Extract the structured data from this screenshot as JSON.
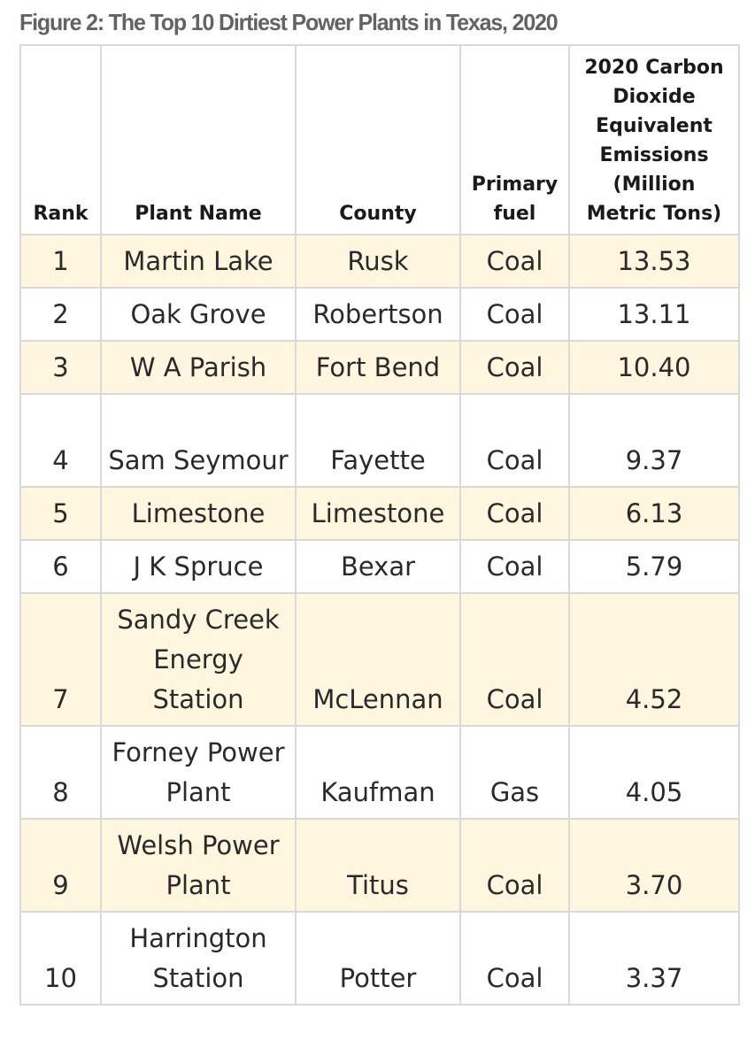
{
  "figure_title": "Figure 2: The Top 10 Dirtiest Power Plants in Texas, 2020",
  "headers": {
    "rank": "Rank",
    "plant_name": "Plant Name",
    "county": "County",
    "primary_fuel": "Primary fuel",
    "emissions": "2020 Carbon Dioxide Equivalent Emissions (Million Metric Tons)"
  },
  "rows": [
    {
      "rank": "1",
      "plant": "Martin Lake",
      "county": "Rusk",
      "fuel": "Coal",
      "emissions": "13.53"
    },
    {
      "rank": "2",
      "plant": "Oak Grove",
      "county": "Robertson",
      "fuel": "Coal",
      "emissions": "13.11"
    },
    {
      "rank": "3",
      "plant": "W A Parish",
      "county": "Fort Bend",
      "fuel": "Coal",
      "emissions": "10.40"
    },
    {
      "rank": "4",
      "plant": "Sam Seymour",
      "county": "Fayette",
      "fuel": "Coal",
      "emissions": "9.37"
    },
    {
      "rank": "5",
      "plant": "Limestone",
      "county": "Limestone",
      "fuel": "Coal",
      "emissions": "6.13"
    },
    {
      "rank": "6",
      "plant": "J K Spruce",
      "county": "Bexar",
      "fuel": "Coal",
      "emissions": "5.79"
    },
    {
      "rank": "7",
      "plant": "Sandy Creek Energy Station",
      "county": "McLennan",
      "fuel": "Coal",
      "emissions": "4.52"
    },
    {
      "rank": "8",
      "plant": "Forney Power Plant",
      "county": "Kaufman",
      "fuel": "Gas",
      "emissions": "4.05"
    },
    {
      "rank": "9",
      "plant": "Welsh Power Plant",
      "county": "Titus",
      "fuel": "Coal",
      "emissions": "3.70"
    },
    {
      "rank": "10",
      "plant": "Harrington Station",
      "county": "Potter",
      "fuel": "Coal",
      "emissions": "3.37"
    }
  ],
  "colors": {
    "title": "#636363",
    "shaded_row": "#fff6e0",
    "grid": "#d9d9d9"
  }
}
